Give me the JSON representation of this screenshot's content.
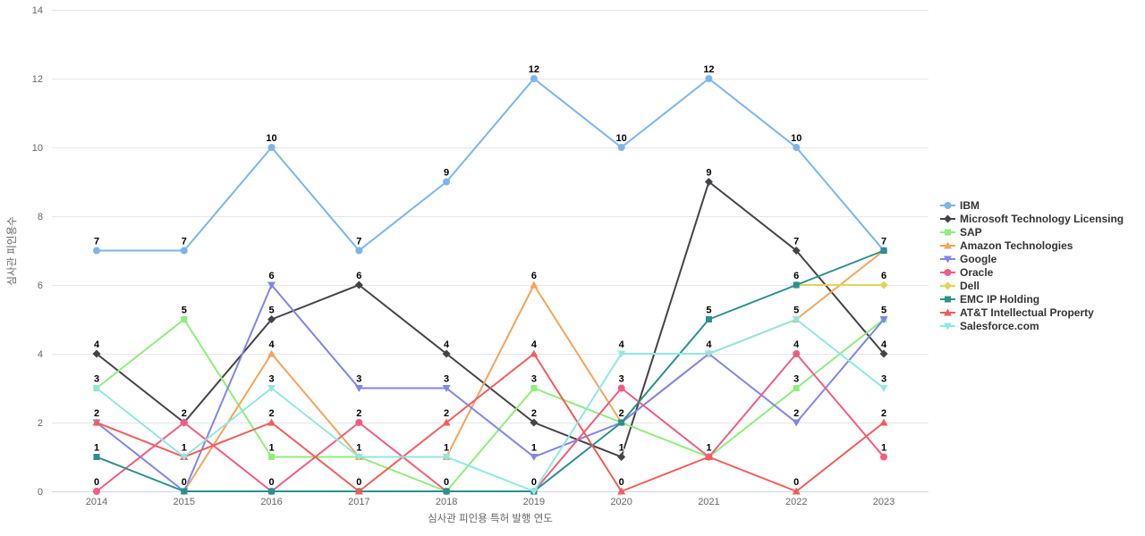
{
  "chart_data": {
    "type": "line",
    "title": "",
    "xlabel": "심사관 피인용 특허 발행 연도",
    "ylabel": "심사관 피인용수",
    "categories": [
      "2014",
      "2015",
      "2016",
      "2017",
      "2018",
      "2019",
      "2020",
      "2021",
      "2022",
      "2023"
    ],
    "ylim": [
      0,
      14
    ],
    "yticks": [
      0,
      2,
      4,
      6,
      8,
      10,
      12,
      14
    ],
    "grid": "horizontal-only",
    "legend_position": "right",
    "axis_line_color": "#ccd6eb",
    "grid_color": "#e6e6e6",
    "data_labels_shown": true,
    "series": [
      {
        "name": "IBM",
        "color": "#7cb5ec",
        "marker": "circle",
        "values": [
          7,
          7,
          10,
          7,
          9,
          12,
          10,
          12,
          10,
          7
        ]
      },
      {
        "name": "Microsoft Technology Licensing",
        "color": "#434348",
        "marker": "diamond",
        "values": [
          4,
          2,
          5,
          6,
          4,
          2,
          1,
          9,
          7,
          4
        ]
      },
      {
        "name": "SAP",
        "color": "#90ed7d",
        "marker": "square",
        "values": [
          3,
          5,
          1,
          1,
          0,
          3,
          2,
          1,
          3,
          5
        ]
      },
      {
        "name": "Amazon Technologies",
        "color": "#f7a35c",
        "marker": "triangle",
        "values": [
          null,
          0,
          4,
          1,
          1,
          6,
          2,
          4,
          5,
          7
        ]
      },
      {
        "name": "Google",
        "color": "#8085e9",
        "marker": "triangle-down",
        "values": [
          2,
          0,
          6,
          3,
          3,
          1,
          2,
          4,
          2,
          5
        ]
      },
      {
        "name": "Oracle",
        "color": "#f15c80",
        "marker": "circle",
        "values": [
          0,
          2,
          0,
          2,
          0,
          0,
          3,
          1,
          4,
          1
        ]
      },
      {
        "name": "Dell",
        "color": "#e4d354",
        "marker": "diamond",
        "values": [
          null,
          null,
          null,
          null,
          null,
          null,
          null,
          null,
          6,
          6
        ]
      },
      {
        "name": "EMC IP Holding",
        "color": "#2b908f",
        "marker": "square",
        "values": [
          1,
          0,
          0,
          0,
          0,
          0,
          2,
          5,
          6,
          7
        ]
      },
      {
        "name": "AT&T Intellectual Property",
        "color": "#f45b5b",
        "marker": "triangle",
        "values": [
          2,
          1,
          2,
          0,
          2,
          4,
          0,
          1,
          0,
          2
        ]
      },
      {
        "name": "Salesforce.com",
        "color": "#91e8e1",
        "marker": "triangle-down",
        "values": [
          3,
          1,
          3,
          1,
          1,
          0,
          4,
          4,
          5,
          3
        ]
      }
    ]
  }
}
